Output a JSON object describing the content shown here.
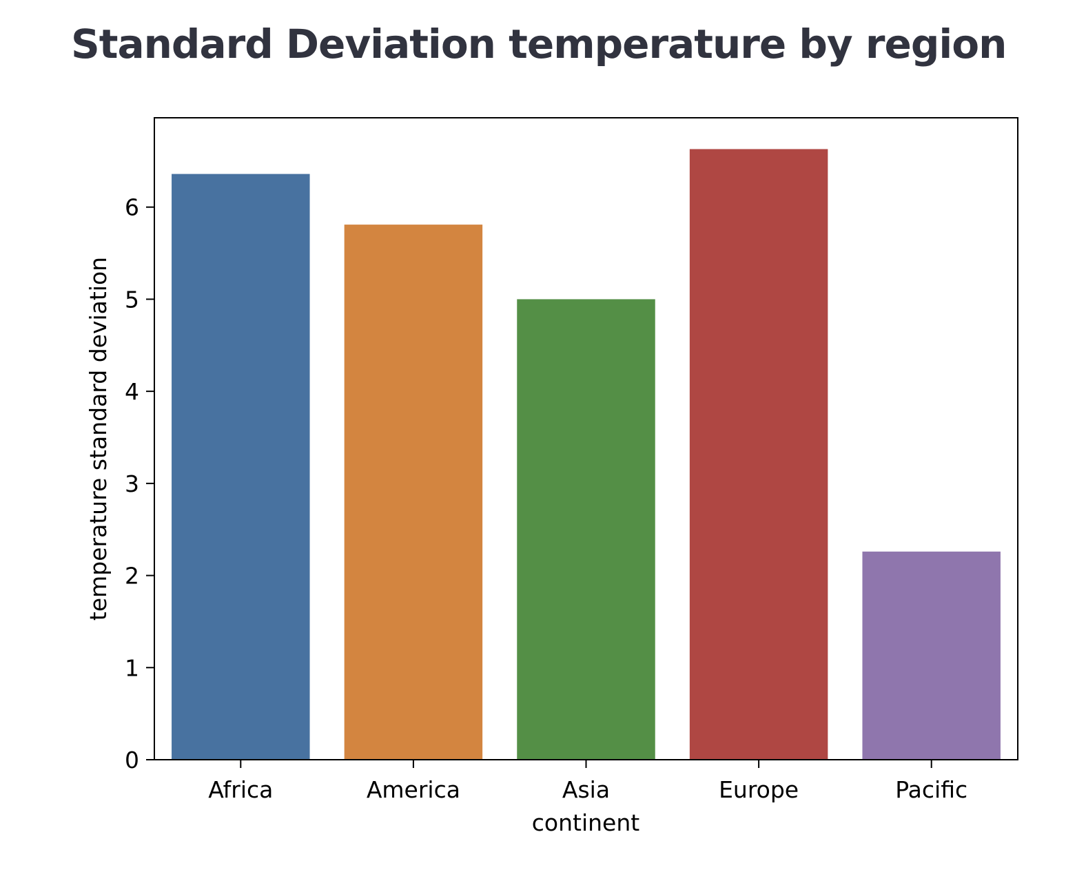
{
  "page": {
    "title": "Standard Deviation temperature by region"
  },
  "chart_data": {
    "type": "bar",
    "categories": [
      "Africa",
      "America",
      "Asia",
      "Europe",
      "Pacific"
    ],
    "values": [
      6.36,
      5.81,
      5.0,
      6.63,
      2.26
    ],
    "colors": [
      "#4872a0",
      "#d38540",
      "#548f46",
      "#af4743",
      "#8f76ad"
    ],
    "xlabel": "continent",
    "ylabel": "temperature standard deviation",
    "ylim": [
      0,
      6.97
    ],
    "yticks": [
      0,
      1,
      2,
      3,
      4,
      5,
      6
    ],
    "grid": false,
    "legend": "none"
  }
}
